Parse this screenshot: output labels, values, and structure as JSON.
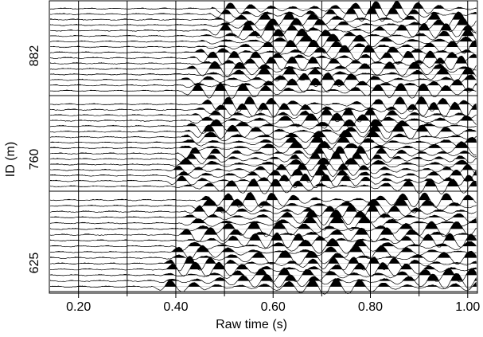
{
  "chart_data": {
    "type": "seismic",
    "x_label": "Raw time (s)",
    "y_label": "ID (m)",
    "xlim": [
      0.14,
      1.02
    ],
    "xticks": [
      {
        "value": 0.2,
        "label": "0.20"
      },
      {
        "value": 0.4,
        "label": "0.40"
      },
      {
        "value": 0.6,
        "label": "0.60"
      },
      {
        "value": 0.8,
        "label": "0.80"
      },
      {
        "value": 1.0,
        "label": "1.00"
      }
    ],
    "xminor_ticks": [
      0.3,
      0.5,
      0.7,
      0.9
    ],
    "categories": [
      "882",
      "760",
      "625"
    ],
    "grid": true
  }
}
